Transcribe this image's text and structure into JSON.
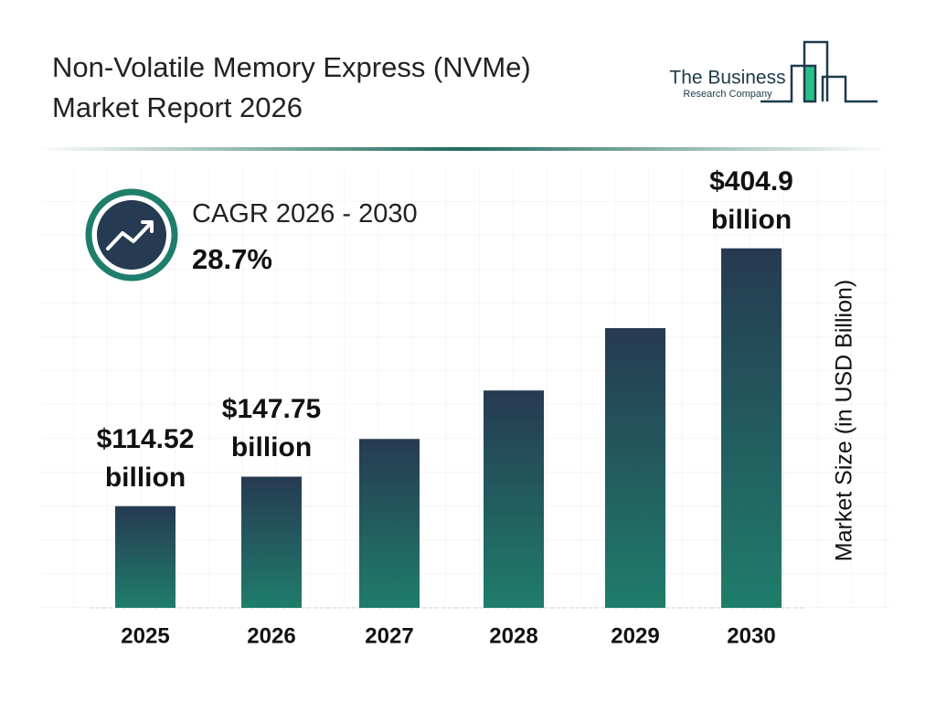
{
  "chart_data": {
    "type": "bar",
    "title": "Non-Volatile Memory Express (NVMe) Market Report 2026",
    "logo": [
      "The Business",
      "Research Company"
    ],
    "cagr_label": "CAGR 2026 - 2030",
    "cagr_value": "28.7%",
    "y_label": "Market Size (in USD Billion)",
    "categories": [
      "2025",
      "2026",
      "2027",
      "2028",
      "2029",
      "2030"
    ],
    "values": [
      114.52,
      147.75,
      190.2,
      244.8,
      315.0,
      404.9
    ],
    "value_labels": [
      "$114.52 billion",
      "$147.75 billion",
      null,
      null,
      null,
      "$404.9 billion"
    ],
    "ylim": [
      0,
      420
    ]
  }
}
